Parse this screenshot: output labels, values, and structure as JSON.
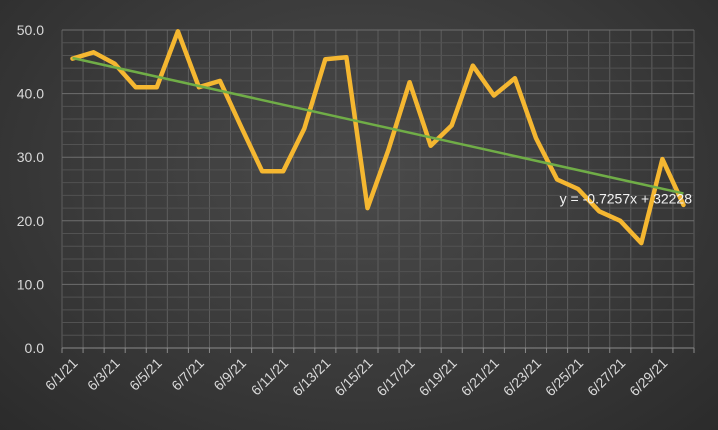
{
  "chart_data": {
    "type": "line",
    "title": "",
    "xlabel": "",
    "ylabel": "",
    "ylim": [
      0,
      50
    ],
    "y_ticks": [
      "0.0",
      "10.0",
      "20.0",
      "30.0",
      "40.0",
      "50.0"
    ],
    "x_tick_labels": [
      "6/1/21",
      "6/3/21",
      "6/5/21",
      "6/7/21",
      "6/9/21",
      "6/11/21",
      "6/13/21",
      "6/15/21",
      "6/17/21",
      "6/19/21",
      "6/21/21",
      "6/23/21",
      "6/25/21",
      "6/27/21",
      "6/29/21"
    ],
    "x": [
      "6/1/21",
      "6/2/21",
      "6/3/21",
      "6/4/21",
      "6/5/21",
      "6/6/21",
      "6/7/21",
      "6/8/21",
      "6/9/21",
      "6/10/21",
      "6/11/21",
      "6/12/21",
      "6/13/21",
      "6/14/21",
      "6/15/21",
      "6/16/21",
      "6/17/21",
      "6/18/21",
      "6/19/21",
      "6/20/21",
      "6/21/21",
      "6/22/21",
      "6/23/21",
      "6/24/21",
      "6/25/21",
      "6/26/21",
      "6/27/21",
      "6/28/21",
      "6/29/21",
      "6/30/21"
    ],
    "series": [
      {
        "values": [
          45.5,
          46.5,
          44.7,
          41.0,
          41.0,
          49.8,
          41.0,
          42.0,
          34.8,
          27.8,
          27.8,
          34.5,
          45.4,
          45.7,
          22.0,
          31.2,
          41.8,
          31.8,
          35.0,
          44.4,
          39.7,
          42.4,
          33.0,
          26.5,
          25.0,
          21.5,
          20.0,
          16.5,
          29.7,
          22.5
        ],
        "color": "#f5b731"
      }
    ],
    "trendline": {
      "equation": "y = -0.7257x + 32228",
      "start_value": 45.6,
      "end_value": 24.3,
      "color": "#70ad47"
    },
    "grid": true,
    "legend": "none"
  }
}
